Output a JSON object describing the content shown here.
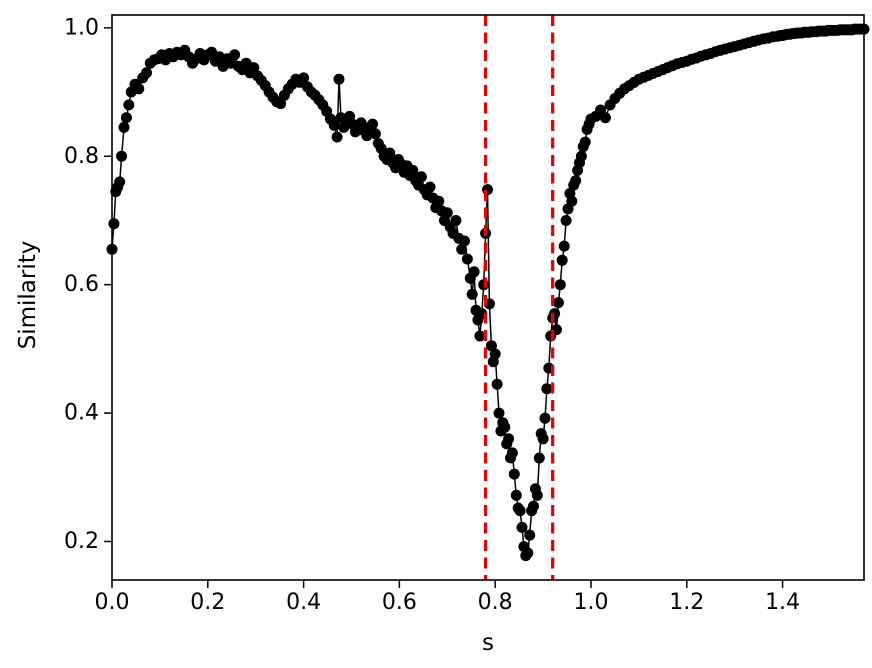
{
  "figure": {
    "background": "#ffffff"
  },
  "chart_data": {
    "type": "scatter",
    "title": "",
    "xlabel": "s",
    "ylabel": "Similarity",
    "xlim": [
      0.0,
      1.57
    ],
    "ylim": [
      0.14,
      1.02
    ],
    "x_ticks": [
      0.0,
      0.2,
      0.4,
      0.6,
      0.8,
      1.0,
      1.2,
      1.4
    ],
    "x_tick_labels": [
      "0.0",
      "0.2",
      "0.4",
      "0.6",
      "0.8",
      "1.0",
      "1.2",
      "1.4"
    ],
    "y_ticks": [
      0.2,
      0.4,
      0.6,
      0.8,
      1.0
    ],
    "y_tick_labels": [
      "0.2",
      "0.4",
      "0.6",
      "0.8",
      "1.0"
    ],
    "grid": false,
    "legend": "none",
    "marker_color": "#000000",
    "line_color": "#000000",
    "marker_radius": 5.5,
    "vlines": {
      "x": [
        0.78,
        0.92
      ],
      "color": "#e60000",
      "style": "dashed",
      "width": 3.2
    },
    "series": [
      {
        "name": "similarity-curve",
        "points": [
          [
            0.0,
            0.655
          ],
          [
            0.004,
            0.695
          ],
          [
            0.008,
            0.745
          ],
          [
            0.012,
            0.752
          ],
          [
            0.016,
            0.76
          ],
          [
            0.02,
            0.8
          ],
          [
            0.025,
            0.845
          ],
          [
            0.03,
            0.86
          ],
          [
            0.035,
            0.88
          ],
          [
            0.04,
            0.9
          ],
          [
            0.048,
            0.912
          ],
          [
            0.056,
            0.905
          ],
          [
            0.064,
            0.922
          ],
          [
            0.072,
            0.93
          ],
          [
            0.08,
            0.945
          ],
          [
            0.088,
            0.95
          ],
          [
            0.096,
            0.952
          ],
          [
            0.104,
            0.958
          ],
          [
            0.112,
            0.95
          ],
          [
            0.12,
            0.96
          ],
          [
            0.128,
            0.955
          ],
          [
            0.136,
            0.962
          ],
          [
            0.144,
            0.958
          ],
          [
            0.152,
            0.965
          ],
          [
            0.16,
            0.955
          ],
          [
            0.168,
            0.945
          ],
          [
            0.176,
            0.952
          ],
          [
            0.184,
            0.96
          ],
          [
            0.192,
            0.95
          ],
          [
            0.2,
            0.958
          ],
          [
            0.208,
            0.962
          ],
          [
            0.216,
            0.948
          ],
          [
            0.224,
            0.955
          ],
          [
            0.232,
            0.94
          ],
          [
            0.24,
            0.952
          ],
          [
            0.248,
            0.945
          ],
          [
            0.256,
            0.958
          ],
          [
            0.264,
            0.94
          ],
          [
            0.272,
            0.935
          ],
          [
            0.28,
            0.945
          ],
          [
            0.288,
            0.93
          ],
          [
            0.296,
            0.938
          ],
          [
            0.304,
            0.925
          ],
          [
            0.312,
            0.918
          ],
          [
            0.32,
            0.91
          ],
          [
            0.328,
            0.9
          ],
          [
            0.336,
            0.892
          ],
          [
            0.344,
            0.885
          ],
          [
            0.352,
            0.882
          ],
          [
            0.36,
            0.895
          ],
          [
            0.368,
            0.905
          ],
          [
            0.376,
            0.912
          ],
          [
            0.384,
            0.92
          ],
          [
            0.392,
            0.915
          ],
          [
            0.4,
            0.922
          ],
          [
            0.408,
            0.908
          ],
          [
            0.416,
            0.9
          ],
          [
            0.424,
            0.895
          ],
          [
            0.432,
            0.888
          ],
          [
            0.44,
            0.88
          ],
          [
            0.448,
            0.87
          ],
          [
            0.456,
            0.858
          ],
          [
            0.464,
            0.848
          ],
          [
            0.47,
            0.83
          ],
          [
            0.474,
            0.92
          ],
          [
            0.478,
            0.86
          ],
          [
            0.484,
            0.845
          ],
          [
            0.49,
            0.855
          ],
          [
            0.496,
            0.862
          ],
          [
            0.502,
            0.85
          ],
          [
            0.508,
            0.838
          ],
          [
            0.514,
            0.845
          ],
          [
            0.52,
            0.852
          ],
          [
            0.526,
            0.84
          ],
          [
            0.532,
            0.832
          ],
          [
            0.538,
            0.845
          ],
          [
            0.544,
            0.85
          ],
          [
            0.55,
            0.835
          ],
          [
            0.556,
            0.82
          ],
          [
            0.562,
            0.812
          ],
          [
            0.568,
            0.8
          ],
          [
            0.574,
            0.795
          ],
          [
            0.58,
            0.805
          ],
          [
            0.586,
            0.79
          ],
          [
            0.592,
            0.782
          ],
          [
            0.598,
            0.795
          ],
          [
            0.604,
            0.788
          ],
          [
            0.61,
            0.775
          ],
          [
            0.616,
            0.785
          ],
          [
            0.622,
            0.77
          ],
          [
            0.628,
            0.778
          ],
          [
            0.634,
            0.762
          ],
          [
            0.64,
            0.755
          ],
          [
            0.646,
            0.768
          ],
          [
            0.652,
            0.748
          ],
          [
            0.658,
            0.74
          ],
          [
            0.664,
            0.752
          ],
          [
            0.67,
            0.735
          ],
          [
            0.676,
            0.72
          ],
          [
            0.682,
            0.73
          ],
          [
            0.688,
            0.715
          ],
          [
            0.694,
            0.7
          ],
          [
            0.7,
            0.712
          ],
          [
            0.706,
            0.69
          ],
          [
            0.712,
            0.68
          ],
          [
            0.718,
            0.7
          ],
          [
            0.724,
            0.672
          ],
          [
            0.73,
            0.655
          ],
          [
            0.736,
            0.668
          ],
          [
            0.742,
            0.64
          ],
          [
            0.748,
            0.61
          ],
          [
            0.752,
            0.585
          ],
          [
            0.756,
            0.62
          ],
          [
            0.76,
            0.56
          ],
          [
            0.764,
            0.545
          ],
          [
            0.768,
            0.52
          ],
          [
            0.772,
            0.555
          ],
          [
            0.776,
            0.6
          ],
          [
            0.78,
            0.68
          ],
          [
            0.784,
            0.748
          ],
          [
            0.788,
            0.57
          ],
          [
            0.792,
            0.505
          ],
          [
            0.796,
            0.48
          ],
          [
            0.8,
            0.492
          ],
          [
            0.804,
            0.445
          ],
          [
            0.808,
            0.4
          ],
          [
            0.812,
            0.372
          ],
          [
            0.816,
            0.385
          ],
          [
            0.82,
            0.378
          ],
          [
            0.824,
            0.352
          ],
          [
            0.828,
            0.36
          ],
          [
            0.832,
            0.33
          ],
          [
            0.836,
            0.338
          ],
          [
            0.84,
            0.305
          ],
          [
            0.844,
            0.272
          ],
          [
            0.848,
            0.252
          ],
          [
            0.852,
            0.248
          ],
          [
            0.856,
            0.222
          ],
          [
            0.86,
            0.192
          ],
          [
            0.864,
            0.178
          ],
          [
            0.868,
            0.182
          ],
          [
            0.872,
            0.21
          ],
          [
            0.876,
            0.248
          ],
          [
            0.88,
            0.255
          ],
          [
            0.884,
            0.282
          ],
          [
            0.888,
            0.272
          ],
          [
            0.892,
            0.33
          ],
          [
            0.896,
            0.368
          ],
          [
            0.9,
            0.36
          ],
          [
            0.904,
            0.392
          ],
          [
            0.908,
            0.438
          ],
          [
            0.912,
            0.47
          ],
          [
            0.916,
            0.52
          ],
          [
            0.92,
            0.548
          ],
          [
            0.924,
            0.555
          ],
          [
            0.928,
            0.53
          ],
          [
            0.932,
            0.572
          ],
          [
            0.936,
            0.6
          ],
          [
            0.94,
            0.638
          ],
          [
            0.944,
            0.66
          ],
          [
            0.948,
            0.7
          ],
          [
            0.952,
            0.718
          ],
          [
            0.956,
            0.742
          ],
          [
            0.96,
            0.73
          ],
          [
            0.964,
            0.755
          ],
          [
            0.968,
            0.762
          ],
          [
            0.972,
            0.778
          ],
          [
            0.976,
            0.79
          ],
          [
            0.98,
            0.8
          ],
          [
            0.984,
            0.815
          ],
          [
            0.988,
            0.822
          ],
          [
            0.992,
            0.842
          ],
          [
            0.996,
            0.85
          ],
          [
            1.0,
            0.858
          ],
          [
            1.01,
            0.862
          ],
          [
            1.02,
            0.872
          ],
          [
            1.03,
            0.86
          ],
          [
            1.04,
            0.88
          ],
          [
            1.05,
            0.89
          ],
          [
            1.06,
            0.898
          ],
          [
            1.07,
            0.905
          ],
          [
            1.08,
            0.91
          ],
          [
            1.09,
            0.915
          ],
          [
            1.1,
            0.92
          ],
          [
            1.11,
            0.923
          ],
          [
            1.12,
            0.926
          ],
          [
            1.13,
            0.929
          ],
          [
            1.14,
            0.932
          ],
          [
            1.15,
            0.935
          ],
          [
            1.16,
            0.938
          ],
          [
            1.17,
            0.941
          ],
          [
            1.18,
            0.944
          ],
          [
            1.19,
            0.946
          ],
          [
            1.2,
            0.948
          ],
          [
            1.21,
            0.951
          ],
          [
            1.22,
            0.953
          ],
          [
            1.23,
            0.956
          ],
          [
            1.24,
            0.958
          ],
          [
            1.25,
            0.96
          ],
          [
            1.26,
            0.963
          ],
          [
            1.27,
            0.965
          ],
          [
            1.28,
            0.967
          ],
          [
            1.29,
            0.969
          ],
          [
            1.3,
            0.971
          ],
          [
            1.31,
            0.973
          ],
          [
            1.32,
            0.975
          ],
          [
            1.33,
            0.977
          ],
          [
            1.34,
            0.979
          ],
          [
            1.35,
            0.981
          ],
          [
            1.36,
            0.983
          ],
          [
            1.37,
            0.984
          ],
          [
            1.38,
            0.986
          ],
          [
            1.39,
            0.987
          ],
          [
            1.395,
            0.988
          ],
          [
            1.4,
            0.988
          ],
          [
            1.405,
            0.989
          ],
          [
            1.41,
            0.99
          ],
          [
            1.415,
            0.99
          ],
          [
            1.42,
            0.991
          ],
          [
            1.425,
            0.991
          ],
          [
            1.43,
            0.992
          ],
          [
            1.435,
            0.992
          ],
          [
            1.44,
            0.992
          ],
          [
            1.445,
            0.993
          ],
          [
            1.45,
            0.993
          ],
          [
            1.455,
            0.993
          ],
          [
            1.46,
            0.994
          ],
          [
            1.465,
            0.994
          ],
          [
            1.47,
            0.994
          ],
          [
            1.475,
            0.995
          ],
          [
            1.48,
            0.995
          ],
          [
            1.485,
            0.995
          ],
          [
            1.49,
            0.995
          ],
          [
            1.495,
            0.996
          ],
          [
            1.5,
            0.996
          ],
          [
            1.505,
            0.996
          ],
          [
            1.51,
            0.996
          ],
          [
            1.515,
            0.996
          ],
          [
            1.52,
            0.997
          ],
          [
            1.525,
            0.997
          ],
          [
            1.53,
            0.997
          ],
          [
            1.535,
            0.997
          ],
          [
            1.54,
            0.997
          ],
          [
            1.545,
            0.997
          ],
          [
            1.55,
            0.998
          ],
          [
            1.555,
            0.998
          ],
          [
            1.56,
            0.998
          ],
          [
            1.565,
            0.998
          ],
          [
            1.57,
            0.998
          ]
        ]
      }
    ]
  }
}
